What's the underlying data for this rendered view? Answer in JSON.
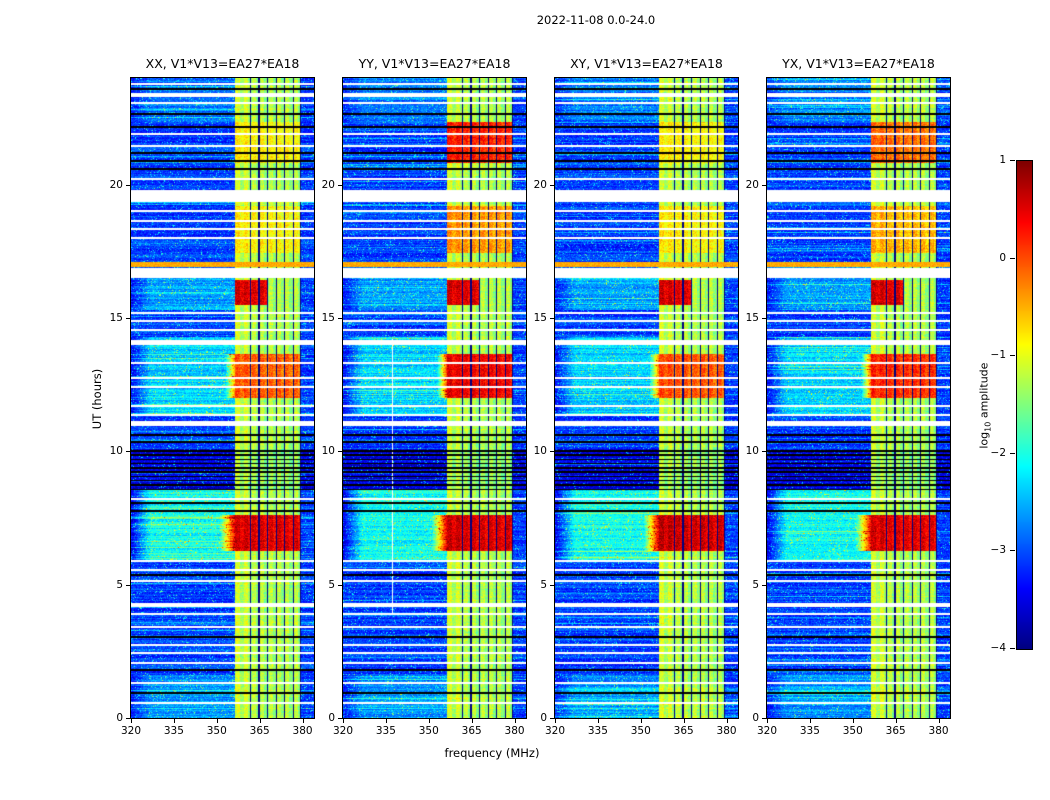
{
  "figure_title": "2022-11-08 0.0-24.0",
  "chart_data": {
    "type": "heatmap",
    "title": "2022-11-08 0.0-24.0",
    "xlabel": "frequency (MHz)",
    "ylabel": "UT (hours)",
    "xlim": [
      320,
      384
    ],
    "ylim": [
      0,
      24
    ],
    "xticks": [
      320,
      335,
      350,
      365,
      380
    ],
    "yticks": [
      0,
      5,
      10,
      15,
      20
    ],
    "value_range": [
      -4,
      1
    ],
    "colormap": "jet",
    "colorbar": {
      "label": "log10 amplitude",
      "label_pre": "log",
      "label_sub": "10",
      "label_post": " amplitude",
      "ticks": [
        1,
        0,
        -1,
        -2,
        -3,
        -4
      ]
    },
    "panels": [
      {
        "id": "XX",
        "title": "XX, V1*V13=EA27*EA18"
      },
      {
        "id": "YY",
        "title": "YY, V1*V13=EA27*EA18"
      },
      {
        "id": "XY",
        "title": "XY, V1*V13=EA27*EA18"
      },
      {
        "id": "YX",
        "title": "YX, V1*V13=EA27*EA18"
      }
    ],
    "features": {
      "background_level": -3.35,
      "rfi_band": {
        "f0": 356.5,
        "f1": 379.6,
        "level": -1.35
      },
      "band_dark_channels": [
        361.8,
        364.8,
        367.8,
        370.8,
        373.8,
        376.8,
        379.3
      ],
      "bursts": [
        {
          "t0": 6.25,
          "t1": 7.6,
          "vals": [
            0.45,
            0.5,
            0.55,
            0.45
          ],
          "spill": 351
        },
        {
          "t0": 12.0,
          "t1": 13.65,
          "vals": [
            -0.15,
            0.35,
            -0.1,
            0.1
          ],
          "spill": 353
        },
        {
          "t0": 15.5,
          "t1": 16.42,
          "vals": [
            0.45,
            0.45,
            0.45,
            0.45
          ],
          "f1": 368
        },
        {
          "t0": 17.45,
          "t1": 19.2,
          "vals": [
            -0.9,
            -0.45,
            -0.9,
            -0.6
          ]
        },
        {
          "t0": 20.8,
          "t1": 22.35,
          "vals": [
            -0.9,
            0.15,
            -0.9,
            -0.25
          ]
        }
      ],
      "clouds": [
        {
          "t0": 5.9,
          "t1": 8.6,
          "boost": 1.0
        },
        {
          "t0": 11.4,
          "t1": 14.3,
          "boost": 0.75
        },
        {
          "t0": 0.0,
          "t1": 1.6,
          "boost": 0.45
        },
        {
          "t0": 15.3,
          "t1": 16.5,
          "boost": 0.5
        },
        {
          "t0": 22.3,
          "t1": 24.0,
          "boost": 0.3
        }
      ],
      "white_gaps": [
        [
          4.15,
          4.3
        ],
        [
          10.95,
          11.12
        ],
        [
          14.0,
          14.17
        ],
        [
          16.5,
          16.88
        ],
        [
          19.35,
          19.8
        ],
        [
          23.3,
          23.45
        ]
      ],
      "white_lines": [
        0.55,
        1.3,
        2.05,
        2.45,
        2.75,
        3.4,
        3.9,
        5.15,
        5.55,
        5.9,
        8.2,
        11.35,
        11.7,
        12.4,
        12.75,
        13.3,
        14.55,
        14.9,
        15.2,
        18.0,
        18.35,
        18.65,
        19.0,
        20.2,
        21.45,
        21.9,
        23.05,
        23.78
      ],
      "black_lines": [
        0.95,
        1.8,
        3.05,
        5.35,
        7.75,
        8.05,
        10.35,
        10.6,
        20.6,
        20.9,
        21.2,
        22.15,
        22.65,
        23.6
      ],
      "black_cluster": {
        "t0": 8.55,
        "t1": 10.1,
        "period": 0.16
      },
      "orange_line": {
        "t0": 16.93,
        "t1": 17.1,
        "level": -0.45
      },
      "white_column": {
        "panel": 1,
        "f": 337.3,
        "width": 0.2,
        "t0": 3.9,
        "t1": 14.2
      }
    }
  }
}
